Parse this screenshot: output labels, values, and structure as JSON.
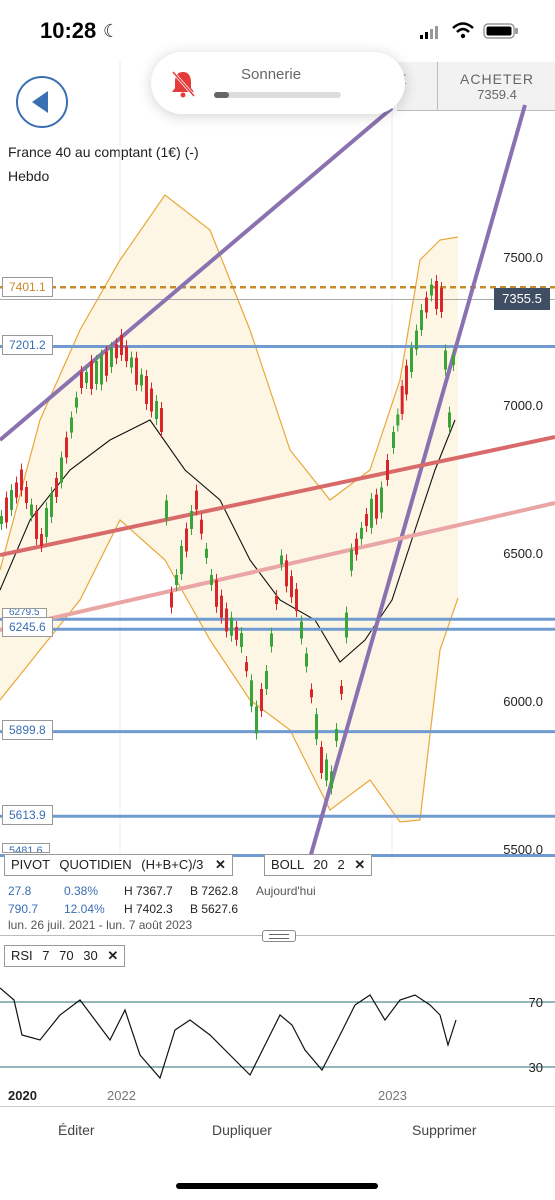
{
  "status_bar": {
    "time": "10:28",
    "moon_icon": "moon-icon"
  },
  "ringer": {
    "label": "Sonnerie",
    "level": 0.12,
    "icon": "bell-slash-icon"
  },
  "header": {
    "sell_stub": "E",
    "buy_label": "ACHETER",
    "buy_price": "7359.4"
  },
  "instrument": {
    "name": "France 40 au comptant (1€) (-)",
    "period": "Hebdo"
  },
  "levels": {
    "l7401": "7401.1",
    "l7201": "7201.2",
    "l6270": "6279.5",
    "l6245": "6245.6",
    "l5899": "5899.8",
    "l5613": "5613.9",
    "l5481": "5481.6",
    "last": "7355.5"
  },
  "axis_labels": [
    "7500.0",
    "7000.0",
    "6500.0",
    "6000.0",
    "5500.0"
  ],
  "indicators": {
    "pivot": {
      "label": "PIVOT",
      "mode": "QUOTIDIEN",
      "formula": "(H+B+C)/3"
    },
    "boll": {
      "label": "BOLL",
      "period": "20",
      "dev": "2"
    },
    "stats": {
      "row1_a": "27.8",
      "row1_b": "0.38%",
      "row1_h": "H 7367.7",
      "row1_l": "B 7262.8",
      "row1_t": "Aujourd'hui",
      "row2_a": "790.7",
      "row2_b": "12.04%",
      "row2_h": "H 7402.3",
      "row2_l": "B 5627.6",
      "range": "lun. 26 juil. 2021 - lun. 7 août 2023"
    },
    "rsi": {
      "label": "RSI",
      "period": "7",
      "high": "70",
      "low": "30"
    }
  },
  "rsi_axis": {
    "high": "70",
    "low": "30"
  },
  "x_labels": {
    "y2020": "2020",
    "y2022": "2022",
    "y2023": "2023"
  },
  "toolbar": {
    "edit": "Éditer",
    "duplicate": "Dupliquer",
    "delete": "Supprimer"
  },
  "colors": {
    "accent": "#3a6fb4",
    "up": "#3aa33a",
    "down": "#d8262b",
    "band": "#e8a83a",
    "trend": "#8a72b0"
  }
}
